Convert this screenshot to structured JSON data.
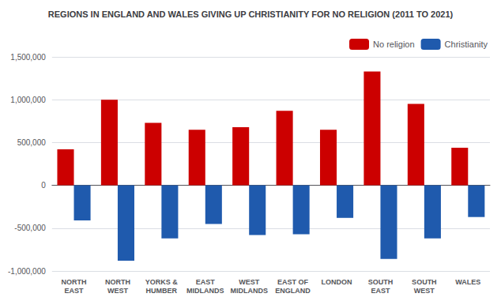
{
  "chart_data": {
    "type": "bar",
    "title": "REGIONS IN ENGLAND AND WALES GIVING UP CHRISTIANITY FOR NO RELIGION (2011 TO 2021)",
    "categories": [
      "NORTH\nEAST",
      "NORTH\nWEST",
      "YORKS &\nHUMBER",
      "EAST\nMIDLANDS",
      "WEST\nMIDLANDS",
      "EAST OF\nENGLAND",
      "LONDON",
      "SOUTH\nEAST",
      "SOUTH\nWEST",
      "WALES"
    ],
    "series": [
      {
        "name": "No religion",
        "color": "#cc0000",
        "values": [
          420000,
          1000000,
          730000,
          650000,
          680000,
          870000,
          650000,
          1330000,
          950000,
          440000
        ]
      },
      {
        "name": "Christianity",
        "color": "#1f5aad",
        "values": [
          -410000,
          -880000,
          -620000,
          -450000,
          -580000,
          -570000,
          -380000,
          -860000,
          -620000,
          -370000
        ]
      }
    ],
    "ylim": [
      -1000000,
      1500000
    ],
    "yticks": [
      {
        "value": -1000000,
        "label": "-1,000,000"
      },
      {
        "value": -500000,
        "label": "-500,000"
      },
      0,
      {
        "value": 500000,
        "label": "500,000"
      },
      {
        "value": 1000000,
        "label": "1,000,000"
      },
      {
        "value": 1500000,
        "label": "1,500,000"
      }
    ],
    "grid": true,
    "legend": "upper right"
  }
}
